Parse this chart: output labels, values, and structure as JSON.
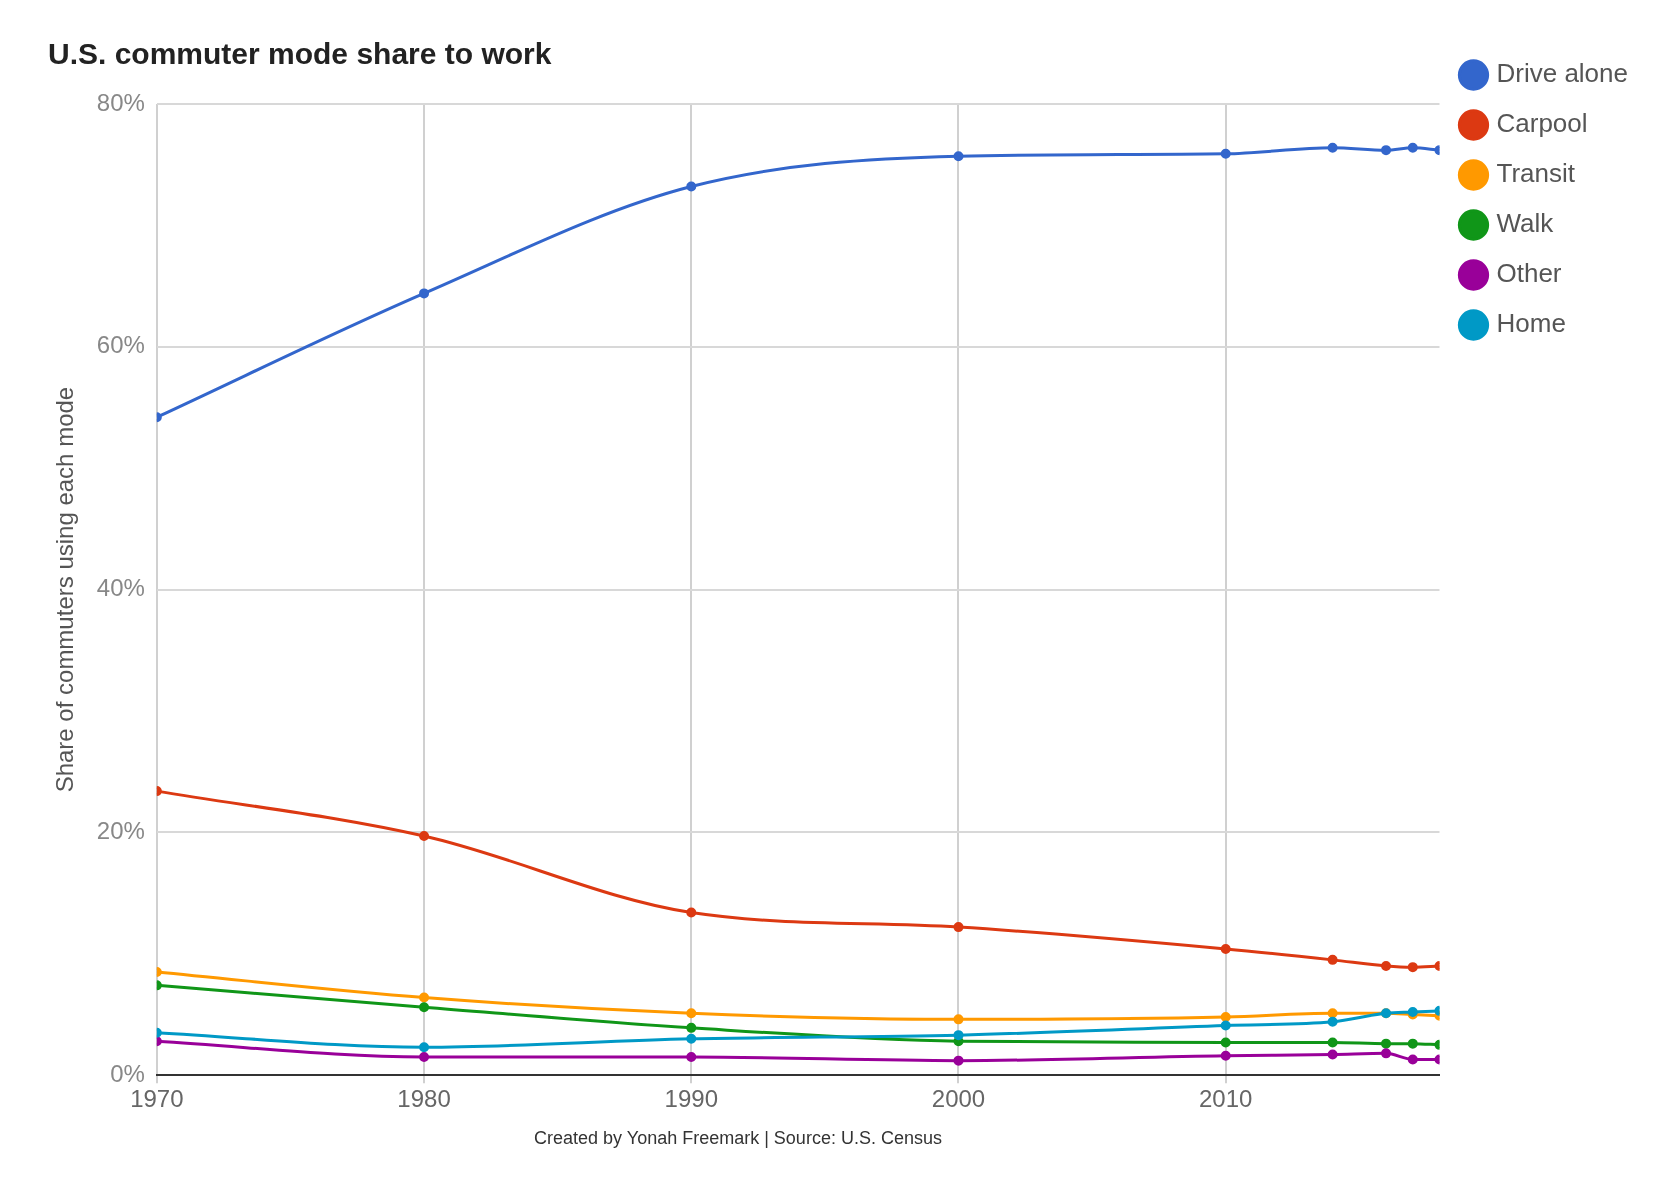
{
  "chart_data": {
    "type": "line",
    "title": "U.S. commuter mode share to work",
    "ylabel": "Share of commuters using each mode",
    "annotations": [
      "Created by Yonah Freemark | Source: U.S. Census"
    ],
    "x": [
      1970,
      1980,
      1990,
      2000,
      2010,
      2014,
      2016,
      2017,
      2018
    ],
    "xlim": [
      1970,
      2018
    ],
    "xticks": [
      1970,
      1980,
      1990,
      2000,
      2010
    ],
    "ylim": [
      0,
      80
    ],
    "yticks": [
      {
        "value": 0,
        "label": "0%"
      },
      {
        "value": 20,
        "label": "20%"
      },
      {
        "value": 40,
        "label": "40%"
      },
      {
        "value": 60,
        "label": "60%"
      },
      {
        "value": 80,
        "label": "80%"
      }
    ],
    "grid": true,
    "legend": "top right",
    "marker": "circle",
    "line_style": "solid",
    "series": [
      {
        "name": "Drive alone",
        "color": "#3366cc",
        "values": [
          54.2,
          64.4,
          73.2,
          75.7,
          75.9,
          76.4,
          76.2,
          76.4,
          76.2
        ]
      },
      {
        "name": "Carpool",
        "color": "#dc3912",
        "values": [
          23.4,
          19.7,
          13.4,
          12.2,
          10.4,
          9.5,
          9.0,
          8.9,
          9.0
        ]
      },
      {
        "name": "Transit",
        "color": "#ff9900",
        "values": [
          8.5,
          6.4,
          5.1,
          4.6,
          4.8,
          5.1,
          5.1,
          5.0,
          4.9
        ]
      },
      {
        "name": "Walk",
        "color": "#109618",
        "values": [
          7.4,
          5.6,
          3.9,
          2.8,
          2.7,
          2.7,
          2.6,
          2.6,
          2.5
        ]
      },
      {
        "name": "Other",
        "color": "#990099",
        "values": [
          2.8,
          1.5,
          1.5,
          1.2,
          1.6,
          1.7,
          1.8,
          1.3,
          1.3
        ]
      },
      {
        "name": "Home",
        "color": "#0099c6",
        "values": [
          3.5,
          2.3,
          3.0,
          3.3,
          4.1,
          4.4,
          5.1,
          5.2,
          5.3
        ]
      }
    ]
  }
}
